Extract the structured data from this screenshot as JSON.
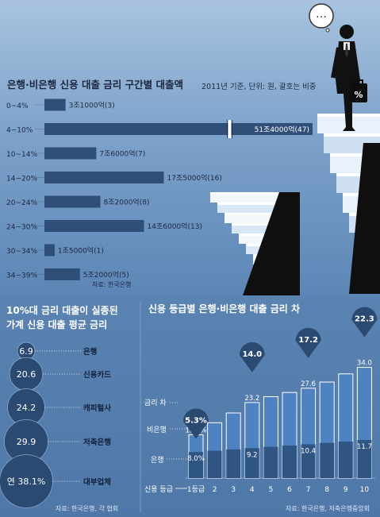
{
  "top_title": "은행·비은행 신용 대출 금리 구간별 대출액",
  "top_note": "2011년 기준, 단위: 원, 괄호는 비중",
  "top_source": "자료: 한국은행",
  "speech": "…",
  "briefcase_label": "%",
  "left_title_1": "10%대 금리 대출이 실종된",
  "left_title_2": "가계 신용 대출 평균 금리",
  "left_source": "자료: 한국은행, 각 협회",
  "right_title": "신용 등급별 은행·비은행 대출 금리 차",
  "right_source": "자료: 한국은행, 저축은행중앙회",
  "label_gap": "금리 차",
  "label_nonbank": "비은행",
  "label_bank": "은행",
  "label_grade": "신용 등급",
  "colors": {
    "bar": "#2f4f78",
    "bubble": "#2b4a72",
    "nonbank": "#4e82c0",
    "bank": "#2f5683"
  },
  "chart_data": [
    {
      "type": "bar",
      "orientation": "horizontal",
      "categories": [
        "0~4%",
        "4~10%",
        "10~14%",
        "14~20%",
        "20~24%",
        "24~30%",
        "30~34%",
        "34~39%"
      ],
      "values": [
        3.1,
        51.4,
        7.6,
        17.5,
        8.2,
        14.6,
        1.5,
        5.2
      ],
      "unit": "조원",
      "data_labels": [
        "3조1000억(3)",
        "51조4000억(47)",
        "7조6000억(7)",
        "17조5000억(16)",
        "8조2000억(8)",
        "14조6000억(13)",
        "1조5000억(1)",
        "5조2000억(5)"
      ],
      "axis_break": true,
      "title": "은행·비은행 신용 대출 금리 구간별 대출액"
    },
    {
      "type": "bubble",
      "categories": [
        "은행",
        "신용카드",
        "캐피털사",
        "저축은행",
        "대부업체"
      ],
      "values": [
        6.9,
        20.6,
        24.2,
        29.9,
        38.1
      ],
      "value_labels": [
        "6.9",
        "20.6",
        "24.2",
        "29.9",
        "연 38.1%"
      ],
      "title": "10%대 금리 대출이 실종된 가계 신용 대출 평균 금리"
    },
    {
      "type": "bar",
      "categories": [
        "1등급",
        "2",
        "3",
        "4",
        "5",
        "6",
        "7",
        "8",
        "9",
        "10"
      ],
      "series": [
        {
          "name": "비은행",
          "values": [
            13.3,
            17.0,
            20.0,
            23.2,
            25.0,
            26.3,
            27.6,
            29.5,
            32.0,
            34.0
          ]
        },
        {
          "name": "은행",
          "values": [
            8.0,
            8.4,
            8.8,
            9.2,
            9.6,
            10.0,
            10.4,
            10.8,
            11.2,
            11.7
          ]
        }
      ],
      "value_labels": {
        "nonbank": {
          "0": "13.3%",
          "3": "23.2",
          "6": "27.6",
          "9": "34.0"
        },
        "bank": {
          "0": "8.0%",
          "3": "9.2",
          "6": "10.4",
          "9": "11.7"
        }
      },
      "gap_markers": [
        {
          "category": "1등급",
          "label": "5.3%"
        },
        {
          "category": "4",
          "label": "14.0"
        },
        {
          "category": "7",
          "label": "17.2"
        },
        {
          "category": "10",
          "label": "22.3"
        }
      ],
      "title": "신용 등급별 은행·비은행 대출 금리 차"
    }
  ]
}
